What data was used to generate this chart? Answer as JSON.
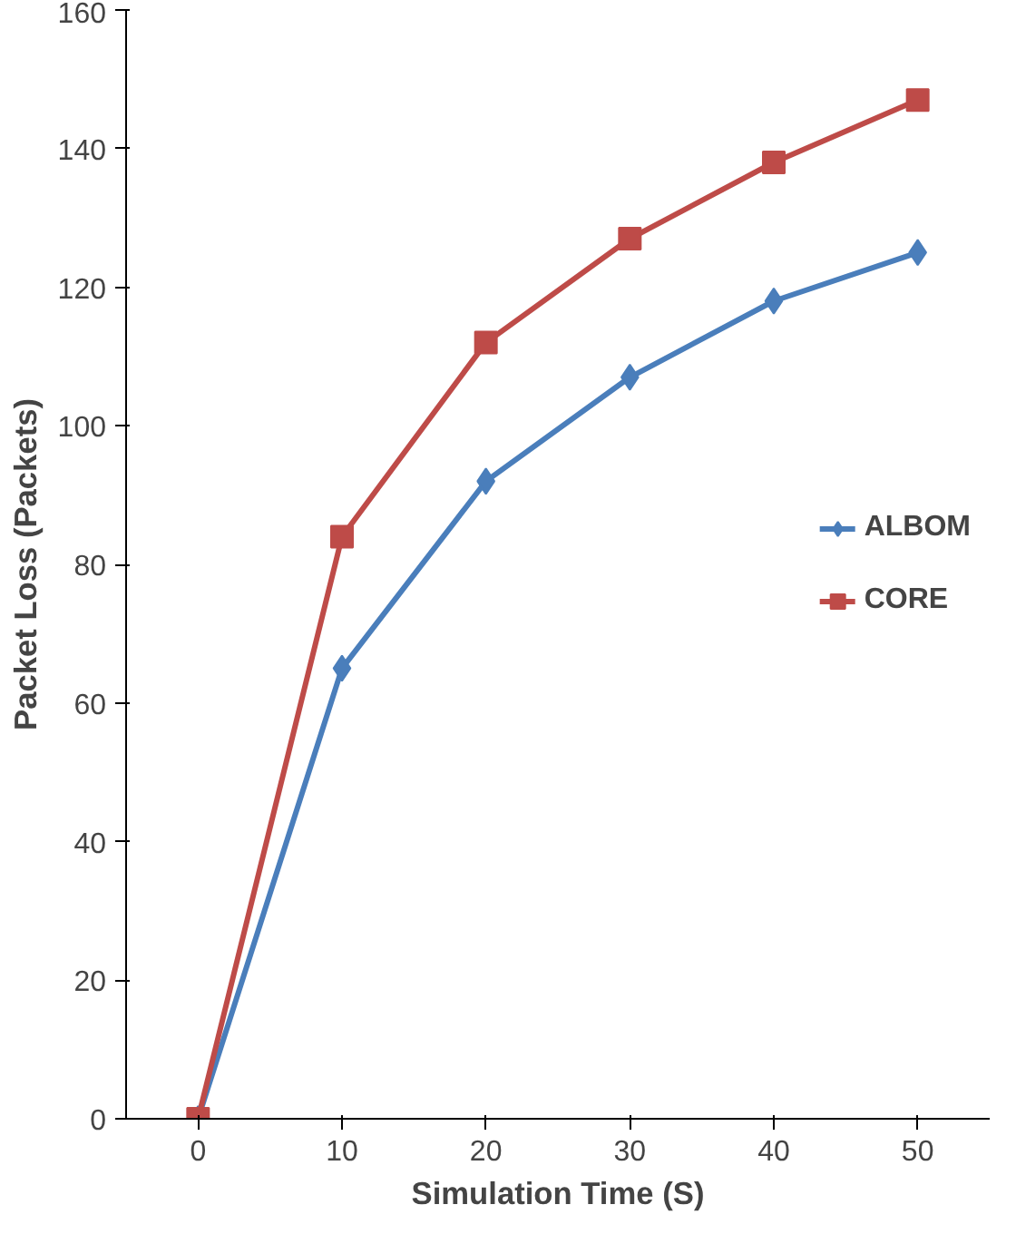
{
  "chart_data": {
    "type": "line",
    "xlabel": "Simulation Time (S)",
    "ylabel": "Packet Loss (Packets)",
    "categories": [
      "0",
      "10",
      "20",
      "30",
      "40",
      "50"
    ],
    "series": [
      {
        "name": "ALBOM",
        "color": "#4a7ebb",
        "marker": "diamond",
        "values": [
          0,
          65,
          92,
          107,
          118,
          125
        ]
      },
      {
        "name": "CORE",
        "color": "#be4b48",
        "marker": "square",
        "values": [
          0,
          84,
          112,
          127,
          138,
          147
        ]
      }
    ],
    "ylim": [
      0,
      160
    ],
    "yticks": [
      0,
      20,
      40,
      60,
      80,
      100,
      120,
      140,
      160
    ],
    "grid": false,
    "legend": "right",
    "line_style": "solid"
  }
}
